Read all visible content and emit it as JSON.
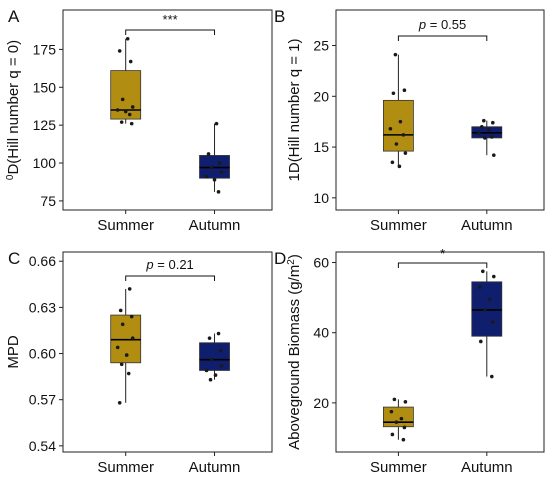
{
  "colors": {
    "summer": "#b18e12",
    "autumn": "#0f1f6e"
  },
  "chart_data": [
    {
      "panel": "A",
      "type": "boxplot",
      "ylabel_sup": "0",
      "ylabel": "D(Hill number q = 0)",
      "categories": [
        "Summer",
        "Autumn"
      ],
      "yticks": [
        75,
        100,
        125,
        150,
        175
      ],
      "ylim": [
        69,
        201
      ],
      "significance": "***",
      "boxes": [
        {
          "category": "Summer",
          "min": 126,
          "q1": 129,
          "median": 135,
          "q3": 161,
          "max": 182
        },
        {
          "category": "Autumn",
          "min": 81,
          "q1": 90,
          "median": 97,
          "q3": 105,
          "max": 126
        }
      ],
      "points": [
        {
          "category": "Summer",
          "values": [
            182,
            174,
            167,
            142,
            137,
            135,
            134,
            132,
            127,
            126
          ]
        },
        {
          "category": "Autumn",
          "values": [
            126,
            106,
            100,
            97,
            94,
            91,
            89,
            81
          ]
        }
      ]
    },
    {
      "panel": "B",
      "type": "boxplot",
      "ylabel": "1D(Hill number q = 1)",
      "categories": [
        "Summer",
        "Autumn"
      ],
      "yticks": [
        10,
        15,
        20,
        25
      ],
      "ylim": [
        8.8,
        28.5
      ],
      "significance": "p = 0.55",
      "boxes": [
        {
          "category": "Summer",
          "min": 13.1,
          "q1": 14.6,
          "median": 16.2,
          "q3": 19.6,
          "max": 24.1
        },
        {
          "category": "Autumn",
          "min": 14.2,
          "q1": 15.9,
          "median": 16.4,
          "q3": 17.0,
          "max": 17.6
        }
      ],
      "points": [
        {
          "category": "Summer",
          "values": [
            24.1,
            20.6,
            20.3,
            17.5,
            16.8,
            16.2,
            15.3,
            14.4,
            13.5,
            13.1
          ]
        },
        {
          "category": "Autumn",
          "values": [
            17.6,
            17.4,
            17.0,
            16.7,
            16.4,
            16.0,
            15.9,
            14.2
          ]
        }
      ]
    },
    {
      "panel": "C",
      "type": "boxplot",
      "ylabel": "MPD",
      "categories": [
        "Summer",
        "Autumn"
      ],
      "yticks": [
        0.54,
        0.57,
        0.6,
        0.63,
        0.66
      ],
      "ytick_labels": [
        "0.54",
        "0.57",
        "0.60",
        "0.63",
        "0.66"
      ],
      "ylim": [
        0.536,
        0.666
      ],
      "significance": "p = 0.21",
      "boxes": [
        {
          "category": "Summer",
          "min": 0.568,
          "q1": 0.594,
          "median": 0.609,
          "q3": 0.625,
          "max": 0.642
        },
        {
          "category": "Autumn",
          "min": 0.583,
          "q1": 0.589,
          "median": 0.596,
          "q3": 0.607,
          "max": 0.613
        }
      ],
      "points": [
        {
          "category": "Summer",
          "values": [
            0.642,
            0.628,
            0.624,
            0.619,
            0.61,
            0.604,
            0.599,
            0.593,
            0.587,
            0.568
          ]
        },
        {
          "category": "Autumn",
          "values": [
            0.613,
            0.61,
            0.602,
            0.596,
            0.592,
            0.589,
            0.586,
            0.583
          ]
        }
      ]
    },
    {
      "panel": "D",
      "type": "boxplot",
      "ylabel": "Aboveground Biomass (g/m",
      "ylabel_sup": "2",
      "ylabel_end": ")",
      "categories": [
        "Summer",
        "Autumn"
      ],
      "yticks": [
        20,
        40,
        60
      ],
      "ylim": [
        6,
        63
      ],
      "significance": "*",
      "boxes": [
        {
          "category": "Summer",
          "min": 9.5,
          "q1": 13.2,
          "median": 14.5,
          "q3": 18.8,
          "max": 21.0
        },
        {
          "category": "Autumn",
          "min": 27.5,
          "q1": 39.0,
          "median": 46.5,
          "q3": 54.5,
          "max": 57.5
        }
      ],
      "points": [
        {
          "category": "Summer",
          "values": [
            21.0,
            20.3,
            17.5,
            15.5,
            14.5,
            13.0,
            11.0,
            9.5
          ]
        },
        {
          "category": "Autumn",
          "values": [
            57.5,
            56.0,
            53.0,
            49.5,
            46.5,
            43.0,
            37.5,
            27.5
          ]
        }
      ]
    }
  ]
}
